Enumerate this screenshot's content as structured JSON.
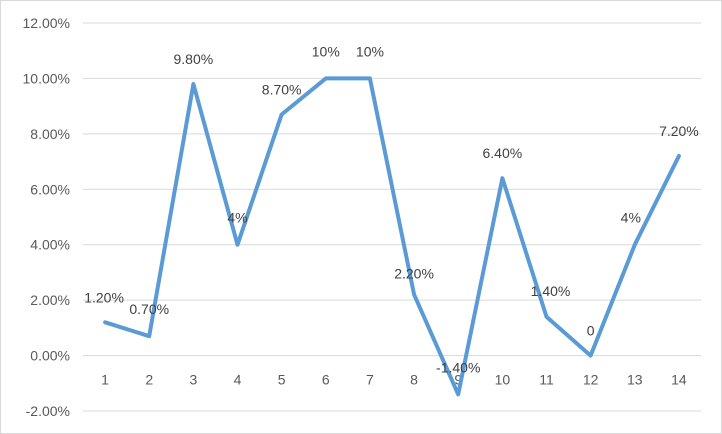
{
  "chart_data": {
    "type": "line",
    "title": "",
    "xlabel": "",
    "ylabel": "",
    "categories": [
      "1",
      "2",
      "3",
      "4",
      "5",
      "6",
      "7",
      "8",
      "9",
      "10",
      "11",
      "12",
      "13",
      "14"
    ],
    "series": [
      {
        "values": [
          1.2,
          0.7,
          9.8,
          4,
          8.7,
          10,
          10,
          2.2,
          -1.4,
          6.4,
          1.4,
          0,
          4,
          7.2
        ],
        "labels": [
          "1.20%",
          "0.70%",
          "9.80%",
          "4%",
          "8.70%",
          "10%",
          "10%",
          "2.20%",
          "-1.40%",
          "6.40%",
          "1.40%",
          "0",
          "4%",
          "7.20%"
        ],
        "color": "#5b9bd5"
      }
    ],
    "ylim": [
      -2,
      12
    ],
    "y_ticks": [
      -2,
      0,
      2,
      4,
      6,
      8,
      10,
      12
    ],
    "y_tick_labels": [
      "-2.00%",
      "0.00%",
      "2.00%",
      "4.00%",
      "6.00%",
      "8.00%",
      "10.00%",
      "12.00%"
    ],
    "grid": true,
    "legend": "none",
    "gridline_color": "#d9d9d9"
  }
}
